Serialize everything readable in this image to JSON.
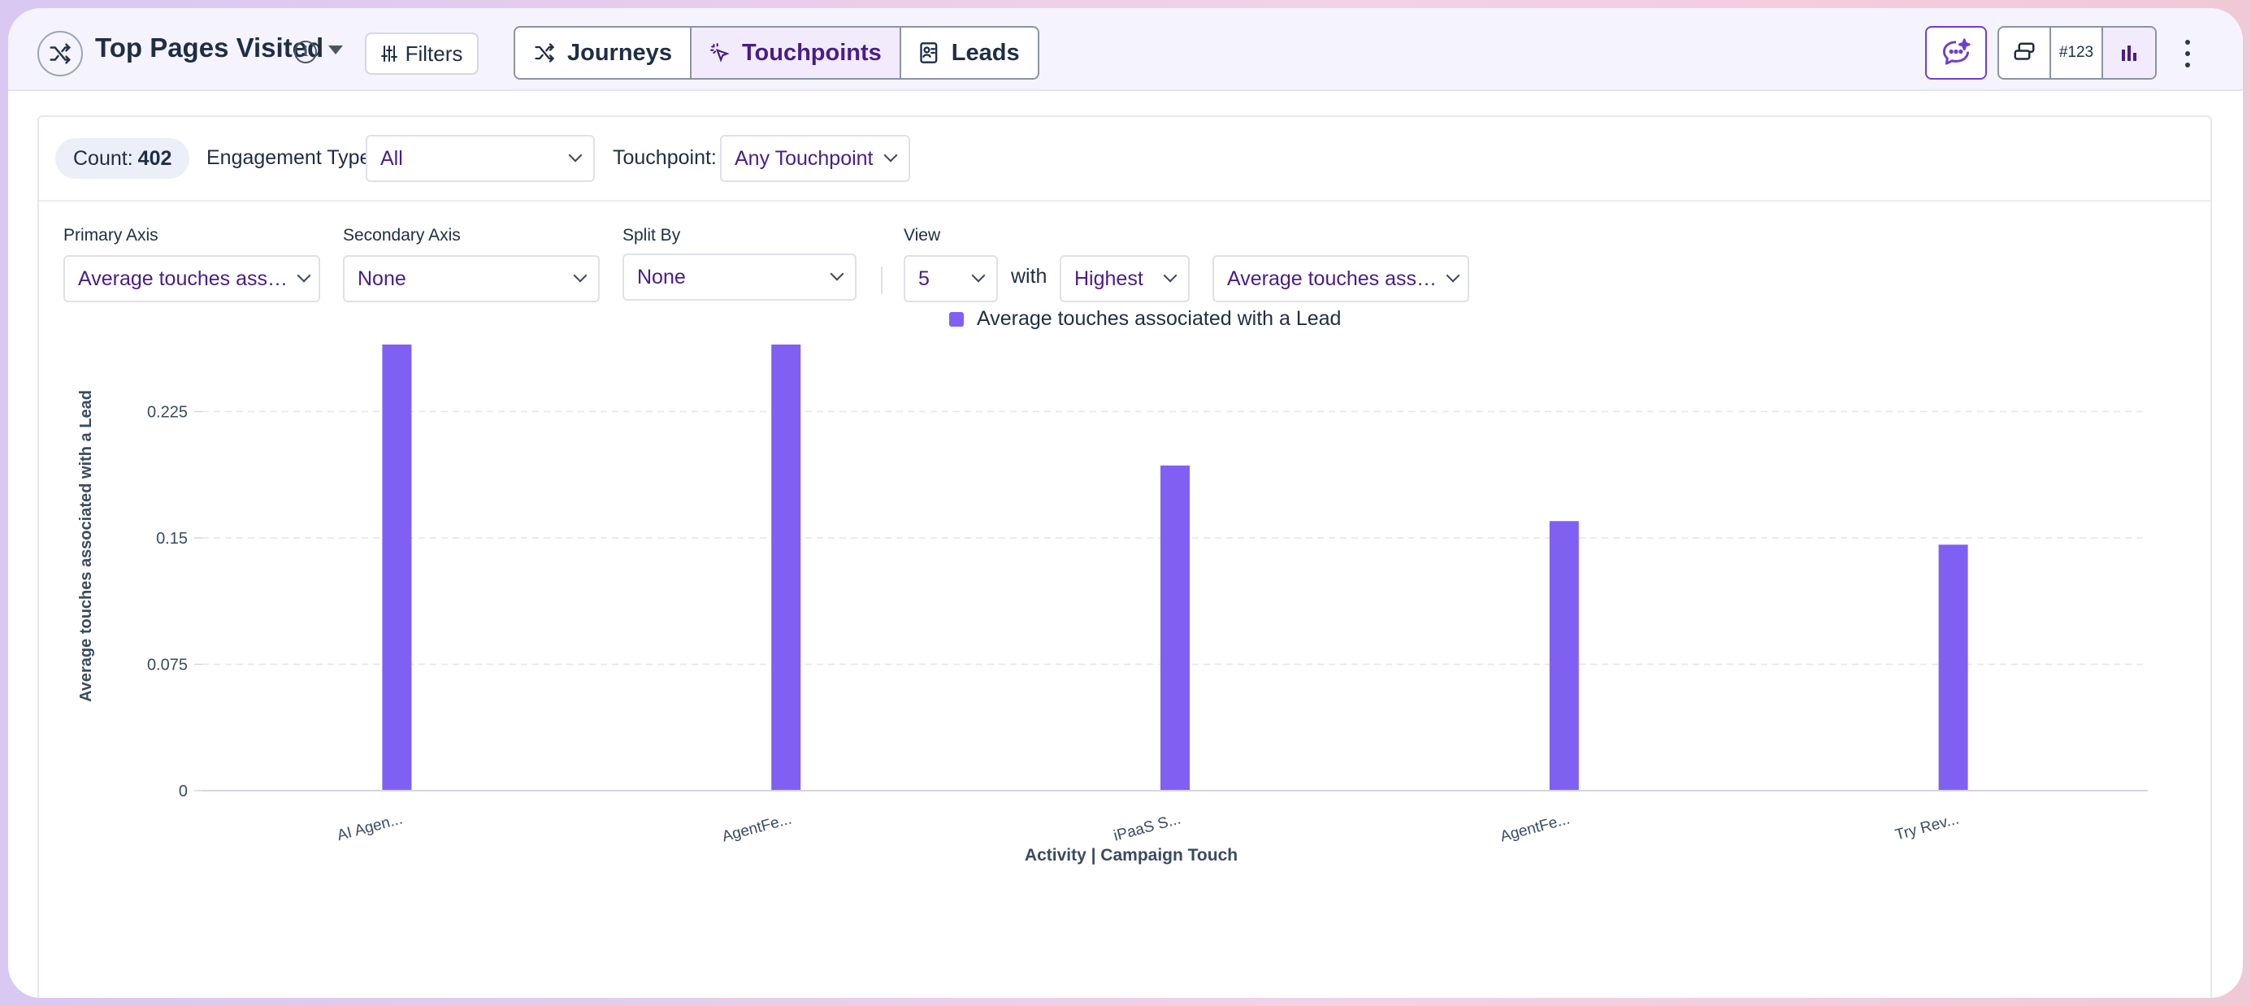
{
  "header": {
    "title": "Top Pages Visited",
    "filters_label": "Filters",
    "tabs": [
      {
        "label": "Journeys",
        "icon": "shuffle-icon",
        "active": false
      },
      {
        "label": "Touchpoints",
        "icon": "tap-icon",
        "active": true
      },
      {
        "label": "Leads",
        "icon": "lead-card-icon",
        "active": false
      }
    ],
    "right_buttons": {
      "ai_icon": "ai-chat-sparkle-icon",
      "group": [
        {
          "icon": "stack-icon",
          "label": ""
        },
        {
          "icon": "number-icon",
          "label": "#123"
        },
        {
          "icon": "bar-chart-icon",
          "label": ""
        }
      ]
    }
  },
  "toolbar": {
    "count_label": "Count:",
    "count_value": "402",
    "engagement_label": "Engagement Type:",
    "engagement_value": "All",
    "touchpoint_label": "Touchpoint:",
    "touchpoint_value": "Any Touchpoint"
  },
  "controls": {
    "primary_axis_label": "Primary Axis",
    "primary_axis_value": "Average touches ass…",
    "secondary_axis_label": "Secondary Axis",
    "secondary_axis_value": "None",
    "split_by_label": "Split By",
    "split_by_value": "None",
    "view_label": "View",
    "view_count": "5",
    "with_label": "with",
    "view_order": "Highest",
    "view_metric": "Average touches ass…"
  },
  "colors": {
    "accent": "#4a1d86",
    "bar": "#8060f2"
  },
  "chart_data": {
    "type": "bar",
    "categories": [
      "AI Agen...",
      "AgentFe...",
      "iPaaS S...",
      "AgentFe...",
      "Try Rev..."
    ],
    "series": [
      {
        "name": "Average touches associated with a Lead",
        "values": [
          0.284,
          0.283,
          0.193,
          0.16,
          0.146
        ]
      }
    ],
    "xlabel": "Activity | Campaign Touch",
    "ylabel": "Average touches associated with a Lead",
    "ylim": [
      0,
      0.3
    ],
    "yticks": [
      "0",
      "0.075",
      "0.15",
      "0.225",
      "0.3"
    ],
    "ytick_values": [
      0,
      0.075,
      0.15,
      0.225,
      0.3
    ],
    "grid": true,
    "legend": "top-center"
  }
}
